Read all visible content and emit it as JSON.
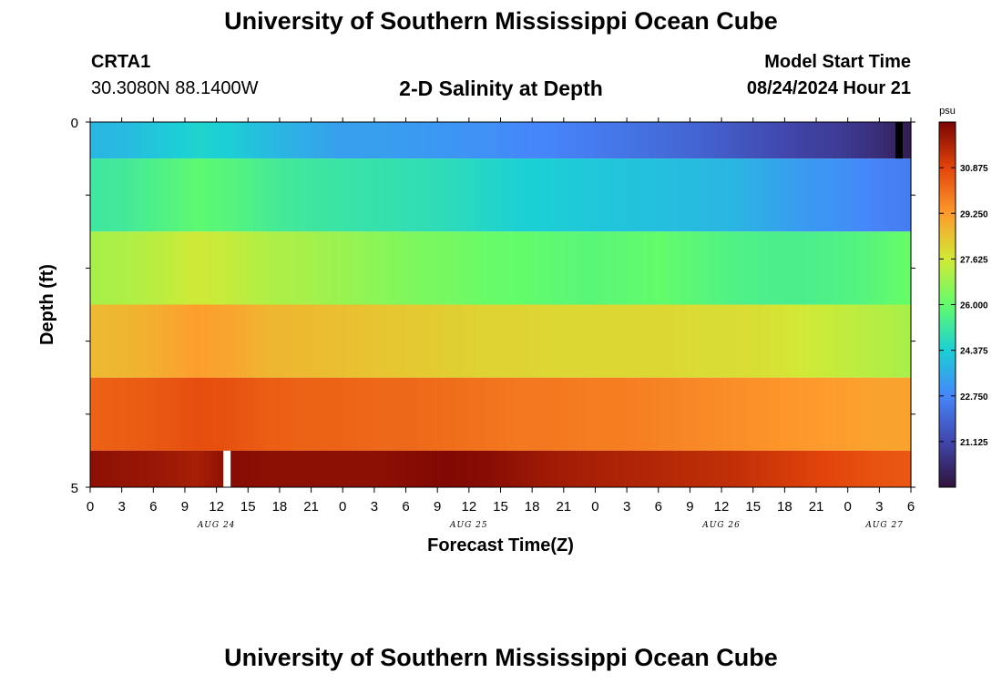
{
  "header": {
    "title": "University of Southern Mississippi Ocean Cube",
    "station_id": "CRTA1",
    "station_coords": "30.3080N  88.1400W",
    "plot_title": "2-D Salinity at Depth",
    "start_label": "Model Start Time",
    "start_value": "08/24/2024 Hour 21"
  },
  "footer": {
    "title": "University of Southern Mississippi Ocean Cube"
  },
  "chart_data": {
    "type": "heatmap",
    "title": "2-D Salinity at Depth",
    "xlabel": "Forecast Time(Z)",
    "ylabel": "Depth (ft)",
    "x_ticks": [
      "0",
      "3",
      "6",
      "9",
      "12",
      "15",
      "18",
      "21",
      "0",
      "3",
      "6",
      "9",
      "12",
      "15",
      "18",
      "21",
      "0",
      "3",
      "6",
      "9",
      "12",
      "15",
      "18",
      "21",
      "0",
      "3",
      "6"
    ],
    "day_labels": [
      "AUG 24",
      "AUG 25",
      "AUG 26",
      "AUG 27"
    ],
    "y_ticks": [
      "0",
      "5"
    ],
    "y_range": [
      0,
      5
    ],
    "colorbar": {
      "unit": "psu",
      "ticks": [
        "30.875",
        "29.250",
        "27.625",
        "26.000",
        "24.375",
        "22.750",
        "21.125"
      ],
      "range": [
        19.5,
        32.5
      ]
    },
    "layers": [
      {
        "depth": [
          0.0,
          0.5
        ],
        "values": [
          23.8,
          23.9,
          24.2,
          24.5,
          24.3,
          23.9,
          23.6,
          23.3,
          23.3,
          23.2,
          23.1,
          23.0,
          22.8,
          22.7,
          22.5,
          22.3,
          22.1,
          21.9,
          21.6,
          21.3,
          21.0,
          20.8,
          20.4,
          19.8
        ]
      },
      {
        "depth": [
          0.5,
          1.5
        ],
        "values": [
          25.2,
          25.3,
          25.6,
          25.9,
          25.7,
          25.4,
          25.2,
          25.1,
          25.0,
          24.9,
          24.8,
          24.6,
          24.4,
          24.3,
          24.2,
          24.1,
          24.0,
          23.9,
          23.8,
          23.5,
          23.2,
          23.0,
          22.7,
          22.5
        ]
      },
      {
        "depth": [
          1.5,
          2.5
        ],
        "values": [
          27.0,
          27.1,
          27.3,
          27.6,
          27.4,
          27.1,
          27.0,
          26.8,
          26.6,
          26.4,
          26.3,
          26.1,
          26.0,
          25.9,
          25.8,
          25.9,
          26.0,
          25.8,
          25.6,
          25.5,
          25.5,
          25.6,
          25.8,
          26.1
        ]
      },
      {
        "depth": [
          2.5,
          3.5
        ],
        "values": [
          28.6,
          28.7,
          28.9,
          29.2,
          29.0,
          28.7,
          28.6,
          28.5,
          28.4,
          28.3,
          28.2,
          28.1,
          28.1,
          28.0,
          28.0,
          28.0,
          28.0,
          27.9,
          27.9,
          27.8,
          27.6,
          27.4,
          27.2,
          27.0
        ]
      },
      {
        "depth": [
          3.5,
          4.5
        ],
        "values": [
          30.3,
          30.4,
          30.5,
          30.7,
          30.6,
          30.4,
          30.3,
          30.3,
          30.2,
          30.2,
          30.1,
          30.0,
          29.9,
          29.9,
          29.8,
          29.8,
          29.7,
          29.6,
          29.5,
          29.4,
          29.3,
          29.2,
          29.1,
          29.1
        ]
      },
      {
        "depth": [
          4.5,
          5.0
        ],
        "values": [
          32.2,
          32.1,
          32.0,
          31.8,
          32.3,
          32.2,
          32.2,
          32.2,
          32.2,
          32.3,
          32.4,
          32.3,
          32.1,
          31.9,
          31.8,
          31.7,
          31.6,
          31.5,
          31.4,
          31.2,
          31.0,
          30.8,
          30.6,
          30.5
        ]
      }
    ],
    "missing_markers": [
      {
        "forecast_hour": 13,
        "depth": [
          4.5,
          5.0
        ],
        "color": "#ffffff"
      },
      {
        "forecast_hour": 78,
        "depth": [
          0.0,
          0.5
        ],
        "color": "#000000"
      }
    ],
    "x_range_hours": [
      0,
      78
    ],
    "colormap": [
      "#30123b",
      "#4146ac",
      "#4686fb",
      "#1bd0d5",
      "#62fc6b",
      "#d2e935",
      "#fe9b2d",
      "#e3440a",
      "#7a0403"
    ]
  }
}
